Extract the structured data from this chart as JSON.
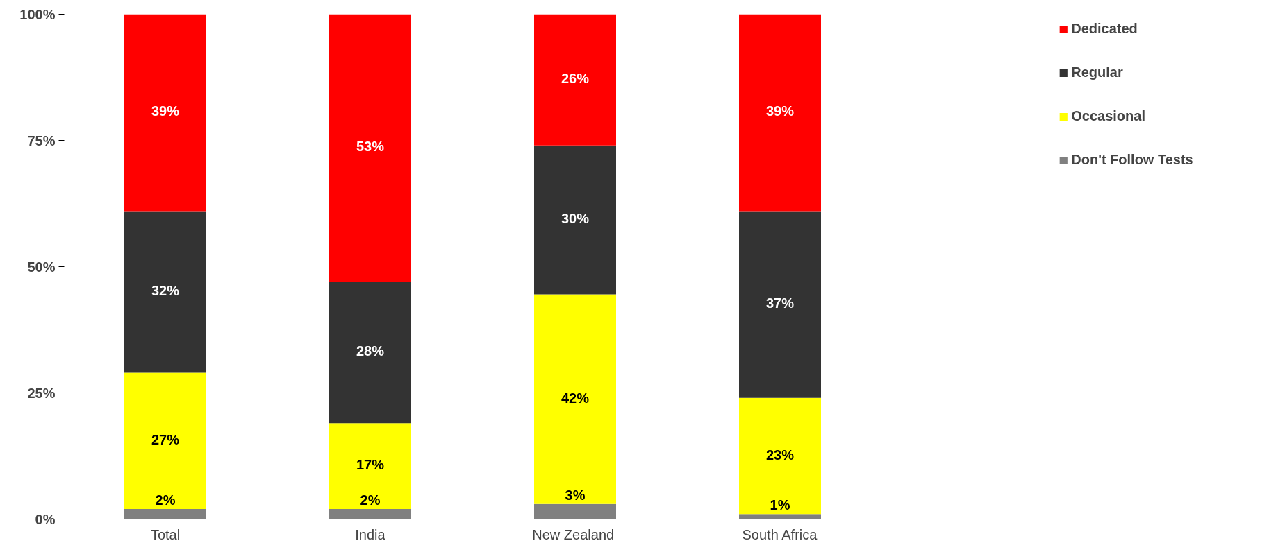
{
  "chart_data": {
    "type": "bar",
    "stacked": true,
    "categories": [
      "Total",
      "India",
      "New  Zealand",
      "South Africa"
    ],
    "series": [
      {
        "name": "Don't Follow Tests",
        "color": "#808080",
        "values": [
          2,
          2,
          3,
          1
        ],
        "value_labels": [
          "2%",
          "2%",
          "3%",
          "1%"
        ]
      },
      {
        "name": "Occasional",
        "color": "#ffff00",
        "values": [
          27,
          17,
          41.5,
          23
        ],
        "value_labels": [
          "27%",
          "17%",
          "42%",
          "23%"
        ]
      },
      {
        "name": "Regular",
        "color": "#333333",
        "values": [
          32,
          28,
          29.5,
          37
        ],
        "value_labels": [
          "32%",
          "28%",
          "30%",
          "37%"
        ]
      },
      {
        "name": "Dedicated",
        "color": "#ff0000",
        "values": [
          39,
          53,
          26,
          39
        ],
        "value_labels": [
          "39%",
          "53%",
          "26%",
          "39%"
        ]
      }
    ],
    "ylim": [
      0,
      100
    ],
    "yticks": [
      {
        "value": 0,
        "label": "0%"
      },
      {
        "value": 25,
        "label": "25%"
      },
      {
        "value": 50,
        "label": "50%"
      },
      {
        "value": 75,
        "label": "75%"
      },
      {
        "value": 100,
        "label": "100%"
      }
    ],
    "grid": false,
    "legend": "top right"
  }
}
